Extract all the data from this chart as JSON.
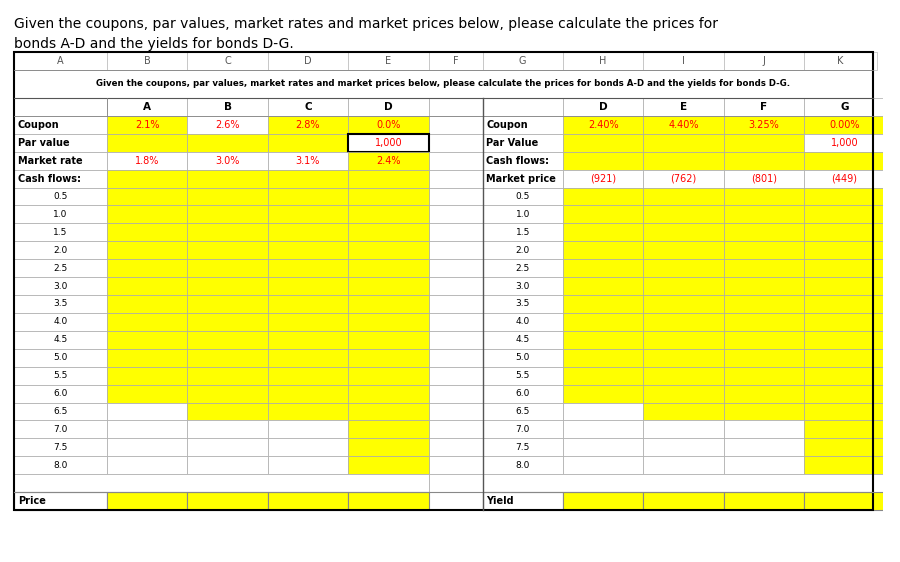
{
  "title_line1": "Given the coupons, par values, market rates and market prices below, please calculate the prices for",
  "title_line2": "bonds A-D and the yields for bonds D-G.",
  "subtitle": "Given the coupons, par values, market rates and market prices below, please calculate the prices for bonds A-D and the yields for bonds D-G.",
  "col_headers_top": [
    "A",
    "B",
    "C",
    "D",
    "E",
    "F",
    "G",
    "H",
    "I",
    "J",
    "K"
  ],
  "left_table": {
    "bond_col_headers": [
      "A",
      "B",
      "C",
      "D"
    ],
    "coupon": [
      "2.1%",
      "2.6%",
      "2.8%",
      "0.0%"
    ],
    "par_value": [
      "",
      "",
      "",
      "1,000"
    ],
    "market_rate": [
      "1.8%",
      "3.0%",
      "3.1%",
      "2.4%"
    ],
    "coupon_yellow": [
      true,
      false,
      true,
      true
    ],
    "par_value_yellow": [
      false,
      false,
      false,
      false
    ],
    "par_value_white_bordered": [
      false,
      false,
      false,
      true
    ],
    "market_rate_yellow": [
      false,
      false,
      false,
      true
    ],
    "cf_yellow_count": [
      12,
      13,
      13,
      16
    ]
  },
  "right_table": {
    "bond_col_headers": [
      "D",
      "E",
      "F",
      "G"
    ],
    "coupon": [
      "2.40%",
      "4.40%",
      "3.25%",
      "0.00%"
    ],
    "par_value": [
      "",
      "",
      "",
      "1,000"
    ],
    "market_price": [
      "(921)",
      "(762)",
      "(801)",
      "(449)"
    ],
    "coupon_yellow": [
      true,
      true,
      true,
      true
    ],
    "par_value_yellow": [
      true,
      true,
      true,
      false
    ],
    "cf_yellow_count": [
      12,
      13,
      13,
      16
    ]
  },
  "cf_labels": [
    "0.5",
    "1.0",
    "1.5",
    "2.0",
    "2.5",
    "3.0",
    "3.5",
    "4.0",
    "4.5",
    "5.0",
    "5.5",
    "6.0",
    "6.5",
    "7.0",
    "7.5",
    "8.0"
  ],
  "yellow": "#FFFF00",
  "white": "#FFFFFF",
  "black": "#000000",
  "red": "#FF0000",
  "gray_border": "#AAAAAA",
  "dark_border": "#333333"
}
